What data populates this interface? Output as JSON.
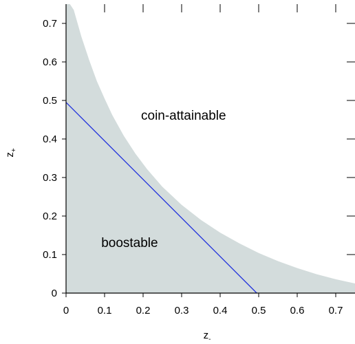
{
  "chart_data": {
    "type": "area",
    "xlabel": "z",
    "xlabel_sub": "-",
    "ylabel": "z",
    "ylabel_sub": "+",
    "xlim": [
      0,
      0.75
    ],
    "ylim": [
      0,
      0.75
    ],
    "x_ticks": [
      "0",
      "0.1",
      "0.2",
      "0.3",
      "0.4",
      "0.5",
      "0.6",
      "0.7"
    ],
    "y_ticks": [
      "0",
      "0.1",
      "0.2",
      "0.3",
      "0.4",
      "0.5",
      "0.6",
      "0.7"
    ],
    "grid": false,
    "colors": {
      "fill": "#d3dcdc",
      "line": "#2233dd",
      "axis": "#000000"
    },
    "series": [
      {
        "kind": "shaded-region",
        "label": "",
        "x": [
          0.0,
          0.01,
          0.02,
          0.04,
          0.06,
          0.08,
          0.1,
          0.12,
          0.15,
          0.18,
          0.21,
          0.25,
          0.3,
          0.35,
          0.4,
          0.45,
          0.5,
          0.55,
          0.6,
          0.65,
          0.7,
          0.75
        ],
        "y": [
          0.75,
          0.75,
          0.735,
          0.665,
          0.605,
          0.55,
          0.505,
          0.462,
          0.408,
          0.362,
          0.322,
          0.276,
          0.229,
          0.19,
          0.157,
          0.129,
          0.104,
          0.083,
          0.065,
          0.049,
          0.036,
          0.025
        ]
      },
      {
        "kind": "line",
        "label": "",
        "x": [
          0.0,
          0.495
        ],
        "y": [
          0.495,
          0.0
        ]
      }
    ],
    "annotations": [
      {
        "text": "coin-attainable",
        "x": 0.305,
        "y": 0.45
      },
      {
        "text": "boostable",
        "x": 0.165,
        "y": 0.12
      }
    ]
  }
}
